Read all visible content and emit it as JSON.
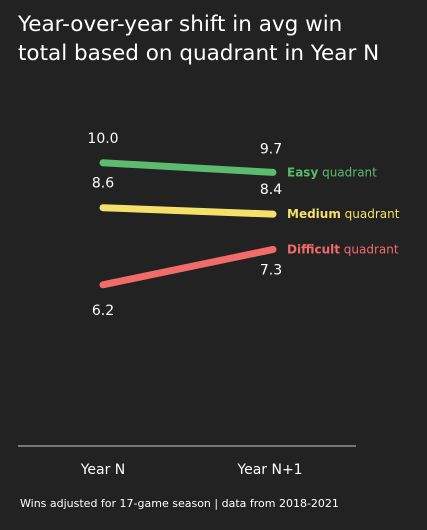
{
  "title": {
    "line1": "Year-over-year shift in avg win",
    "line2": "total based on quadrant in Year N"
  },
  "footer": "Wins adjusted for 17-game season | data from 2018-2021",
  "chart_data": {
    "type": "line",
    "categories": [
      "Year N",
      "Year N+1"
    ],
    "series": [
      {
        "name_bold": "Easy",
        "name_rest": " quadrant",
        "color": "#5dbb6e",
        "values": [
          10.0,
          9.7
        ],
        "labels": [
          "10.0",
          "9.7"
        ]
      },
      {
        "name_bold": "Medium",
        "name_rest": " quadrant",
        "color": "#f4e16a",
        "values": [
          8.6,
          8.4
        ],
        "labels": [
          "8.6",
          "8.4"
        ]
      },
      {
        "name_bold": "Difficult",
        "name_rest": " quadrant",
        "color": "#f26b6b",
        "values": [
          6.2,
          7.3
        ],
        "labels": [
          "6.2",
          "7.3"
        ]
      }
    ],
    "ylim": [
      6.0,
      10.2
    ],
    "grid": false,
    "legend": "direct labels at right end of lines"
  }
}
